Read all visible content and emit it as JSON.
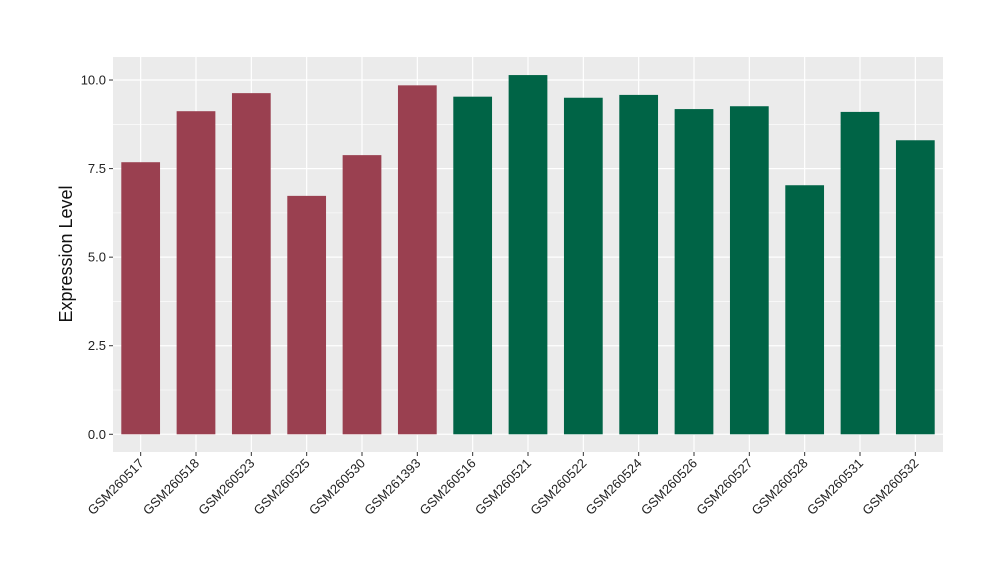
{
  "chart_data": {
    "type": "bar",
    "title": "",
    "xlabel": "",
    "ylabel": "Expression Level",
    "ylim": [
      -0.5,
      10.65
    ],
    "yticks": [
      0.0,
      2.5,
      5.0,
      7.5,
      10.0
    ],
    "ytick_labels": [
      "0.0",
      "2.5",
      "5.0",
      "7.5",
      "10.0"
    ],
    "grid": true,
    "legend": "none",
    "categories": [
      "GSM260517",
      "GSM260518",
      "GSM260523",
      "GSM260525",
      "GSM260530",
      "GSM261393",
      "GSM260516",
      "GSM260521",
      "GSM260522",
      "GSM260524",
      "GSM260526",
      "GSM260527",
      "GSM260528",
      "GSM260531",
      "GSM260532"
    ],
    "values": [
      7.68,
      9.12,
      9.63,
      6.73,
      7.88,
      9.85,
      9.53,
      10.14,
      9.5,
      9.58,
      9.18,
      9.26,
      7.03,
      9.1,
      8.3
    ],
    "bar_colors": [
      "#9a4050",
      "#9a4050",
      "#9a4050",
      "#9a4050",
      "#9a4050",
      "#9a4050",
      "#006446",
      "#006446",
      "#006446",
      "#006446",
      "#006446",
      "#006446",
      "#006446",
      "#006446",
      "#006446"
    ],
    "panel_background": "#ebebeb",
    "grid_color": "#ffffff"
  }
}
